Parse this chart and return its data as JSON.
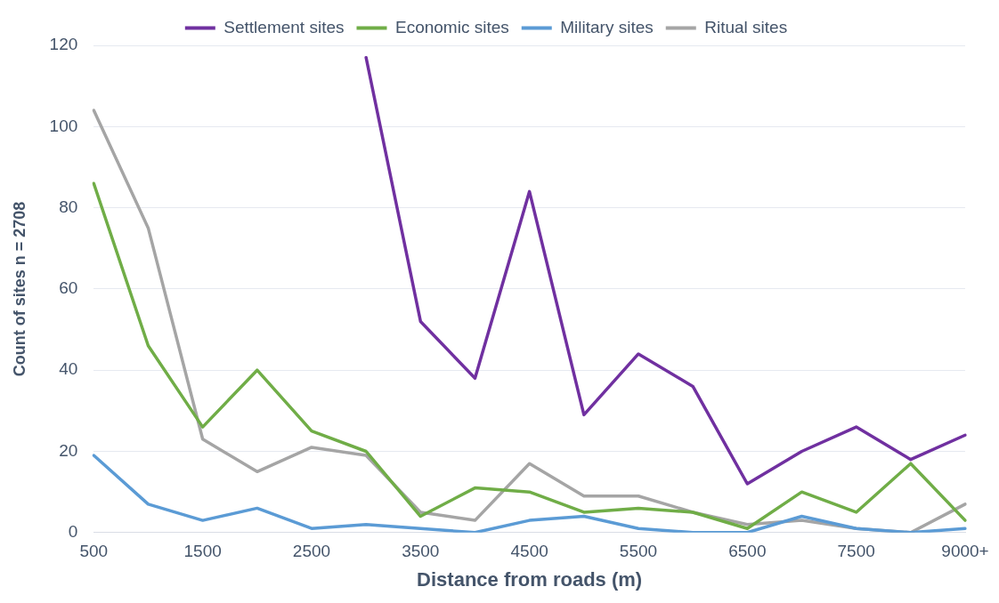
{
  "chart_data": {
    "type": "line",
    "xlabel": "Distance from roads (m)",
    "ylabel": "Count of sites n = 2708",
    "categories": [
      "500",
      null,
      "1500",
      null,
      "2500",
      null,
      "3500",
      null,
      "4500",
      null,
      "5500",
      null,
      "6500",
      null,
      "7500",
      null,
      "9000+"
    ],
    "series": [
      {
        "name": "Settlement sites",
        "color": "#7030a0",
        "values": [
          null,
          null,
          null,
          null,
          null,
          117,
          52,
          38,
          84,
          29,
          44,
          36,
          12,
          20,
          26,
          18,
          24
        ]
      },
      {
        "name": "Economic sites",
        "color": "#70ad47",
        "values": [
          86,
          46,
          26,
          40,
          25,
          20,
          4,
          11,
          10,
          5,
          6,
          5,
          1,
          10,
          5,
          17,
          3
        ]
      },
      {
        "name": "Military sites",
        "color": "#5b9bd5",
        "values": [
          19,
          7,
          3,
          6,
          1,
          2,
          1,
          0,
          3,
          4,
          1,
          0,
          0,
          4,
          1,
          0,
          1
        ]
      },
      {
        "name": "Ritual sites",
        "color": "#a5a5a5",
        "values": [
          104,
          75,
          23,
          15,
          21,
          19,
          5,
          3,
          17,
          9,
          9,
          5,
          2,
          3,
          1,
          0,
          7
        ]
      }
    ],
    "ylim": [
      0,
      120
    ],
    "yticks": [
      0,
      20,
      40,
      60,
      80,
      100,
      120
    ],
    "grid": "y",
    "legend": "top",
    "marker": "none",
    "line_style": "solid"
  }
}
